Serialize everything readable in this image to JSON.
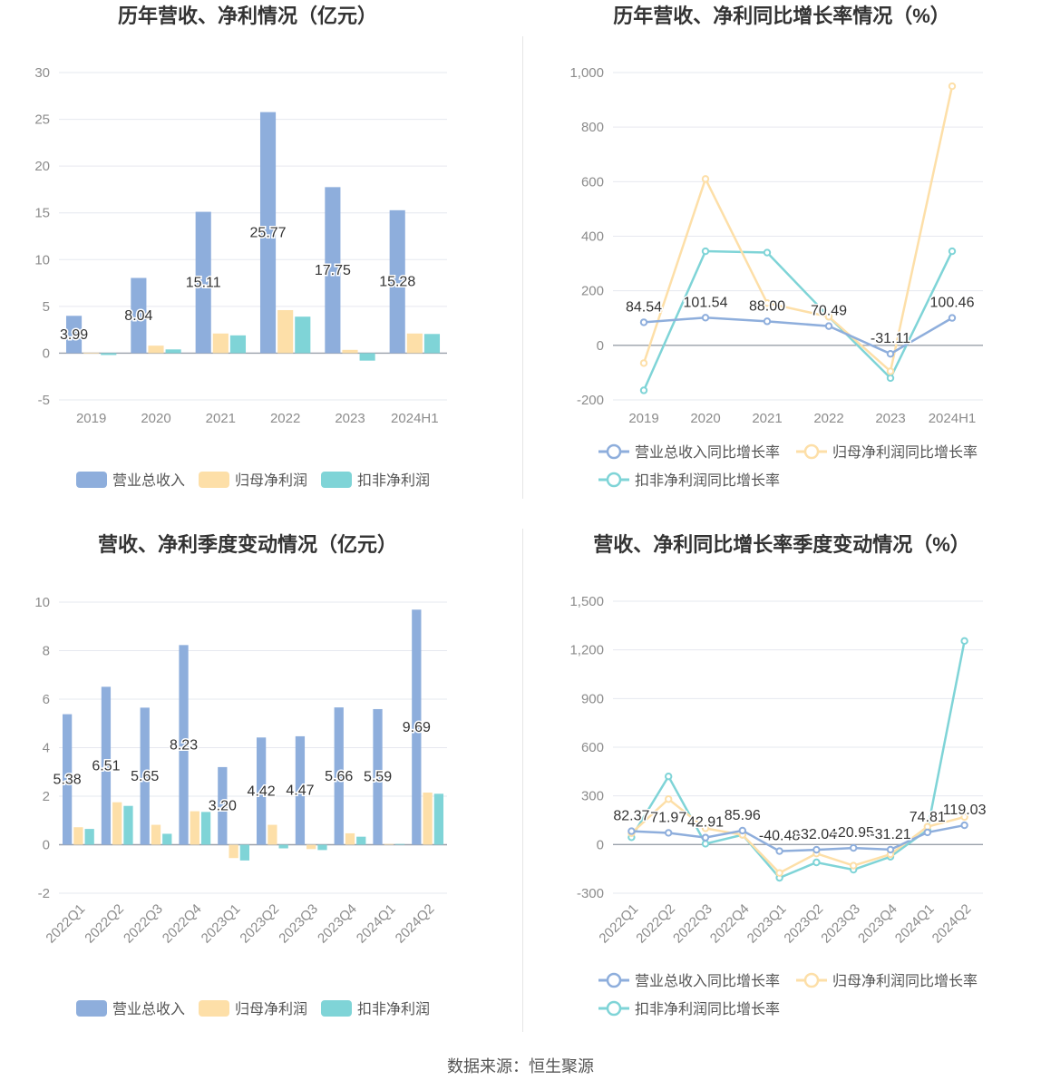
{
  "colors": {
    "revenue": "#8eaedc",
    "parent_profit": "#fddfa8",
    "deducted_profit": "#7fd4d7",
    "axis_text": "#8c8c8c",
    "grid": "#e6e8ef",
    "title": "#333333"
  },
  "source": "数据来源：恒生聚源",
  "chart_data": [
    {
      "type": "bar",
      "title": "历年营收、净利情况（亿元）",
      "categories": [
        "2019",
        "2020",
        "2021",
        "2022",
        "2023",
        "2024H1"
      ],
      "ylim": [
        -5,
        30
      ],
      "yticks": [
        -5,
        0,
        5,
        10,
        15,
        20,
        25,
        30
      ],
      "series": [
        {
          "name": "营业总收入",
          "values": [
            3.99,
            8.04,
            15.11,
            25.77,
            17.75,
            15.28
          ],
          "labels": [
            "3.99",
            "8.04",
            "15.11",
            "25.77",
            "17.75",
            "15.28"
          ]
        },
        {
          "name": "归母净利润",
          "values": [
            0.05,
            0.8,
            2.1,
            4.6,
            0.35,
            2.1
          ]
        },
        {
          "name": "扣非净利润",
          "values": [
            -0.2,
            0.4,
            1.9,
            3.9,
            -0.8,
            2.05
          ]
        }
      ],
      "legend": "bottom"
    },
    {
      "type": "line",
      "title": "历年营收、净利同比增长率情况（%）",
      "categories": [
        "2019",
        "2020",
        "2021",
        "2022",
        "2023",
        "2024H1"
      ],
      "ylim": [
        -200,
        1000
      ],
      "yticks": [
        -200,
        0,
        200,
        400,
        600,
        800,
        1000
      ],
      "ytick_labels": [
        "-200",
        "0",
        "200",
        "400",
        "600",
        "800",
        "1,000"
      ],
      "series": [
        {
          "name": "营业总收入同比增长率",
          "values": [
            84.54,
            101.54,
            88.0,
            70.49,
            -31.11,
            100.46
          ],
          "labels": [
            "84.54",
            "101.54",
            "88.00",
            "70.49",
            "-31.11",
            "100.46"
          ]
        },
        {
          "name": "归母净利润同比增长率",
          "values": [
            -65,
            610,
            155,
            105,
            -95,
            950
          ]
        },
        {
          "name": "扣非净利润同比增长率",
          "values": [
            -165,
            345,
            340,
            105,
            -120,
            345
          ]
        }
      ],
      "legend": "bottom"
    },
    {
      "type": "bar",
      "title": "营收、净利季度变动情况（亿元）",
      "categories": [
        "2022Q1",
        "2022Q2",
        "2022Q3",
        "2022Q4",
        "2023Q1",
        "2023Q2",
        "2023Q3",
        "2023Q4",
        "2024Q1",
        "2024Q2"
      ],
      "ylim": [
        -2,
        10
      ],
      "yticks": [
        -2,
        0,
        2,
        4,
        6,
        8,
        10
      ],
      "series": [
        {
          "name": "营业总收入",
          "values": [
            5.38,
            6.51,
            5.65,
            8.23,
            3.2,
            4.42,
            4.47,
            5.66,
            5.59,
            9.69
          ],
          "labels": [
            "5.38",
            "6.51",
            "5.65",
            "8.23",
            "3.20",
            "4.42",
            "4.47",
            "5.66",
            "5.59",
            "9.69"
          ]
        },
        {
          "name": "归母净利润",
          "values": [
            0.72,
            1.75,
            0.82,
            1.38,
            -0.55,
            0.82,
            -0.18,
            0.47,
            0.03,
            2.15
          ]
        },
        {
          "name": "扣非净利润",
          "values": [
            0.65,
            1.6,
            0.45,
            1.35,
            -0.65,
            -0.15,
            -0.22,
            0.33,
            0.03,
            2.1
          ]
        }
      ],
      "legend": "bottom"
    },
    {
      "type": "line",
      "title": "营收、净利同比增长率季度变动情况（%）",
      "categories": [
        "2022Q1",
        "2022Q2",
        "2022Q3",
        "2022Q4",
        "2023Q1",
        "2023Q2",
        "2023Q3",
        "2023Q4",
        "2024Q1",
        "2024Q2"
      ],
      "ylim": [
        -300,
        1500
      ],
      "yticks": [
        -300,
        0,
        300,
        600,
        900,
        1200,
        1500
      ],
      "ytick_labels": [
        "-300",
        "0",
        "300",
        "600",
        "900",
        "1,200",
        "1,500"
      ],
      "series": [
        {
          "name": "营业总收入同比增长率",
          "values": [
            82.37,
            71.97,
            42.91,
            85.96,
            -40.48,
            -32.04,
            -20.95,
            -31.21,
            74.81,
            119.03
          ],
          "labels": [
            "82.37",
            "71.97",
            "42.91",
            "85.96",
            "-40.48",
            "-32.04",
            "-20.95",
            "-31.21",
            "74.81",
            "119.03"
          ]
        },
        {
          "name": "归母净利润同比增长率",
          "values": [
            70,
            280,
            100,
            60,
            -175,
            -55,
            -130,
            -60,
            110,
            170
          ]
        },
        {
          "name": "扣非净利润同比增长率",
          "values": [
            45,
            420,
            5,
            60,
            -205,
            -110,
            -155,
            -75,
            90,
            1255
          ]
        }
      ],
      "legend": "bottom"
    }
  ]
}
